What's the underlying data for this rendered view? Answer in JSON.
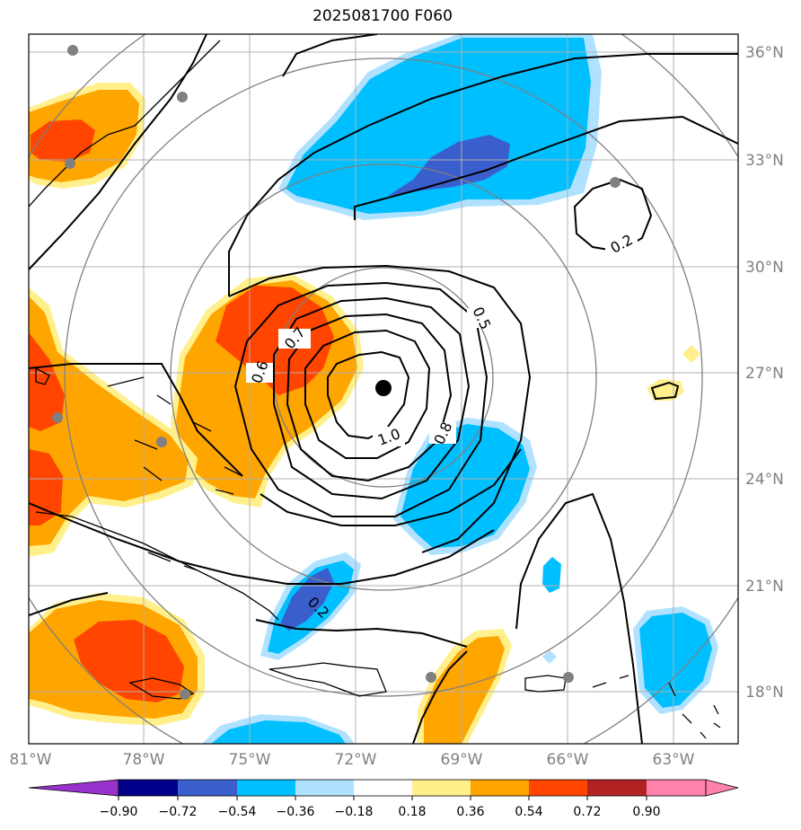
{
  "title": "2025081700 F060",
  "map": {
    "lon_labels": [
      "81°W",
      "78°W",
      "75°W",
      "72°W",
      "69°W",
      "66°W",
      "63°W"
    ],
    "lat_labels": [
      "36°N",
      "33°N",
      "30°N",
      "27°N",
      "24°N",
      "21°N",
      "18°N"
    ],
    "contour_labels": [
      "0.2",
      "0.5",
      "0.6",
      "0.7",
      "0.8",
      "1.0",
      "0.2"
    ]
  },
  "colorbar": {
    "ticks": [
      "−0.90",
      "−0.72",
      "−0.54",
      "−0.36",
      "−0.18",
      "0.18",
      "0.36",
      "0.54",
      "0.72",
      "0.90"
    ],
    "colors": [
      "#9932cc",
      "#00008b",
      "#3a5fcd",
      "#00bfff",
      "#b0e2ff",
      "#ffffff",
      "#fff08c",
      "#ffa500",
      "#ff4500",
      "#b22222",
      "#ff82ab"
    ]
  }
}
